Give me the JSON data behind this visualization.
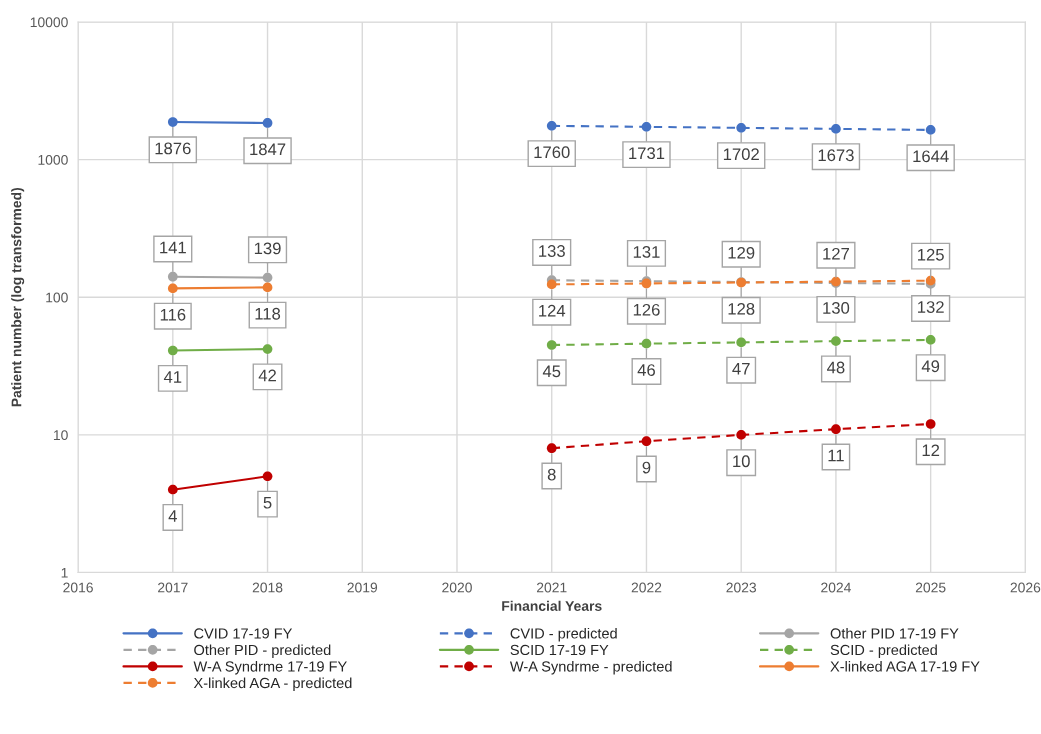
{
  "chart_data": {
    "type": "line",
    "xlabel": "Financial Years",
    "ylabel": "Patient number (log transformed)",
    "xlim": [
      2016,
      2026
    ],
    "xticks": [
      2016,
      2017,
      2018,
      2019,
      2020,
      2021,
      2022,
      2023,
      2024,
      2025,
      2026
    ],
    "ylim": [
      1,
      10000
    ],
    "yticks": [
      1,
      10,
      100,
      1000,
      10000
    ],
    "log": "y",
    "grid": true,
    "legend": "bottom",
    "marker": "circle",
    "data_labels": true,
    "series": [
      {
        "name": "CVID 17-19 FY",
        "color": "#4472c4",
        "x": [
          2017,
          2018
        ],
        "values": [
          1876,
          1847
        ],
        "line_style": "solid"
      },
      {
        "name": "CVID - predicted",
        "color": "#4472c4",
        "x": [
          2021,
          2022,
          2023,
          2024,
          2025
        ],
        "values": [
          1760,
          1731,
          1702,
          1673,
          1644
        ],
        "line_style": "dashed"
      },
      {
        "name": "Other PID 17-19 FY",
        "color": "#a5a5a5",
        "x": [
          2017,
          2018
        ],
        "values": [
          141,
          139
        ],
        "line_style": "solid"
      },
      {
        "name": "Other PID - predicted",
        "color": "#a5a5a5",
        "x": [
          2021,
          2022,
          2023,
          2024,
          2025
        ],
        "values": [
          133,
          131,
          129,
          127,
          125
        ],
        "line_style": "dashed"
      },
      {
        "name": "SCID 17-19 FY",
        "color": "#70ad47",
        "x": [
          2017,
          2018
        ],
        "values": [
          41,
          42
        ],
        "line_style": "solid"
      },
      {
        "name": "SCID - predicted",
        "color": "#70ad47",
        "x": [
          2021,
          2022,
          2023,
          2024,
          2025
        ],
        "values": [
          45,
          46,
          47,
          48,
          49
        ],
        "line_style": "dashed"
      },
      {
        "name": "W-A Syndrme 17-19 FY",
        "color": "#c00000",
        "x": [
          2017,
          2018
        ],
        "values": [
          4,
          5
        ],
        "line_style": "solid"
      },
      {
        "name": "W-A Syndrme - predicted",
        "color": "#c00000",
        "x": [
          2021,
          2022,
          2023,
          2024,
          2025
        ],
        "values": [
          8,
          9,
          10,
          11,
          12
        ],
        "line_style": "dashed"
      },
      {
        "name": "X-linked AGA 17-19 FY",
        "color": "#ed7d31",
        "x": [
          2017,
          2018
        ],
        "values": [
          116,
          118
        ],
        "line_style": "solid"
      },
      {
        "name": "X-linked AGA - predicted",
        "color": "#ed7d31",
        "x": [
          2021,
          2022,
          2023,
          2024,
          2025
        ],
        "values": [
          124,
          126,
          128,
          130,
          132
        ],
        "line_style": "dashed"
      }
    ]
  }
}
